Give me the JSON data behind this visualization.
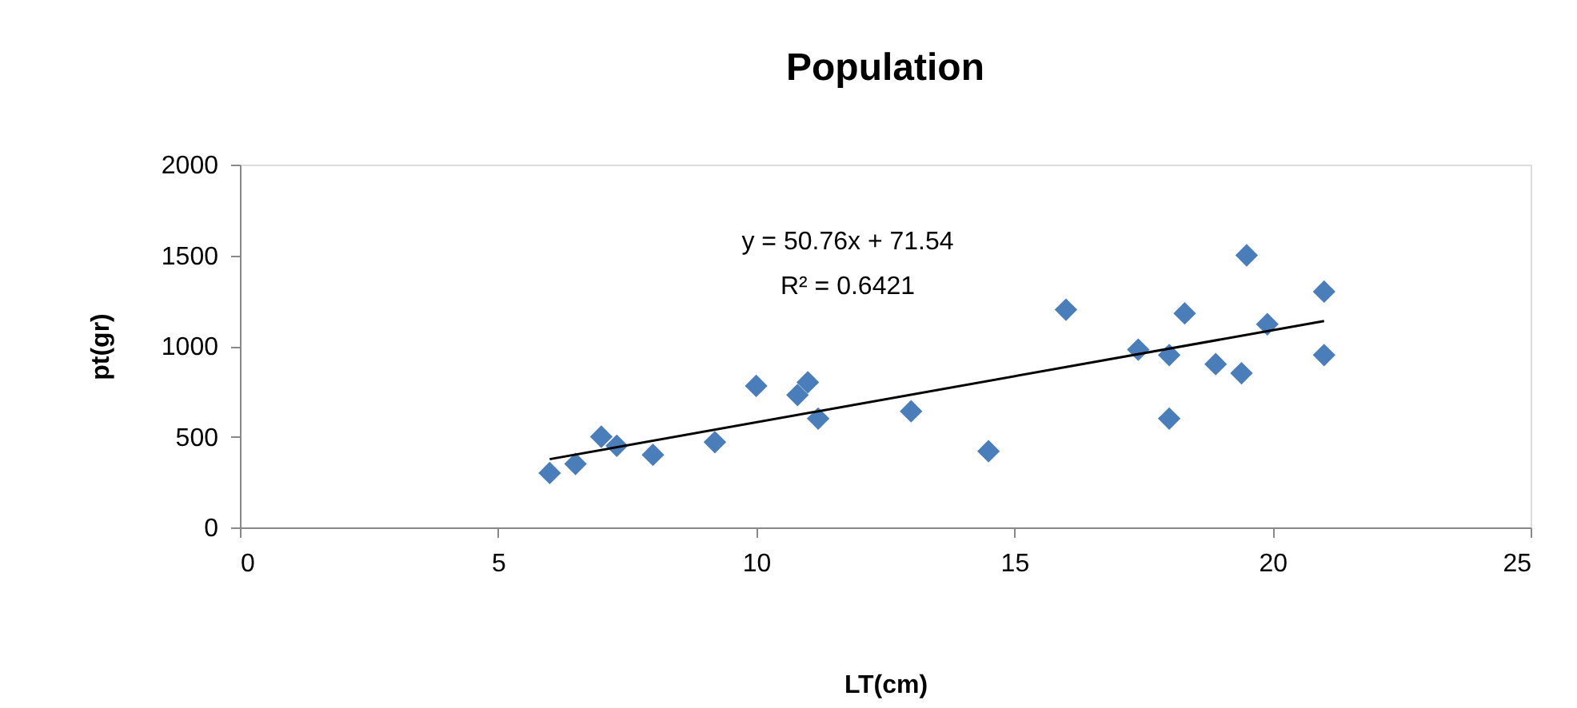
{
  "chart_data": {
    "type": "scatter",
    "title": "Population",
    "xlabel": "LT(cm)",
    "ylabel": "pt(gr)",
    "xlim": [
      0,
      25
    ],
    "xticks": [
      0,
      5,
      10,
      15,
      20,
      25
    ],
    "ylim": [
      0,
      2000
    ],
    "yticks": [
      0,
      500,
      1000,
      1500,
      2000
    ],
    "grid": false,
    "annotations": [
      "y = 50.76x + 71.54",
      "R² = 0.6421"
    ],
    "series": [
      {
        "marker": "diamond",
        "color": "#4a7ebb",
        "x": [
          6.0,
          6.5,
          7.0,
          7.3,
          8.0,
          9.2,
          10.0,
          10.8,
          11.0,
          11.2,
          13.0,
          14.5,
          16.0,
          17.4,
          18.0,
          18.0,
          18.3,
          18.9,
          19.4,
          19.5,
          19.9,
          21.0,
          21.0
        ],
        "values": [
          300,
          350,
          500,
          450,
          400,
          470,
          780,
          730,
          800,
          600,
          640,
          420,
          1200,
          980,
          950,
          600,
          1180,
          900,
          850,
          1500,
          1120,
          1300,
          950
        ]
      },
      {
        "type": "line",
        "marker": "none",
        "color": "#000000",
        "line_style": "solid",
        "x": [
          6,
          21
        ],
        "values": [
          376,
          1138
        ]
      }
    ]
  }
}
